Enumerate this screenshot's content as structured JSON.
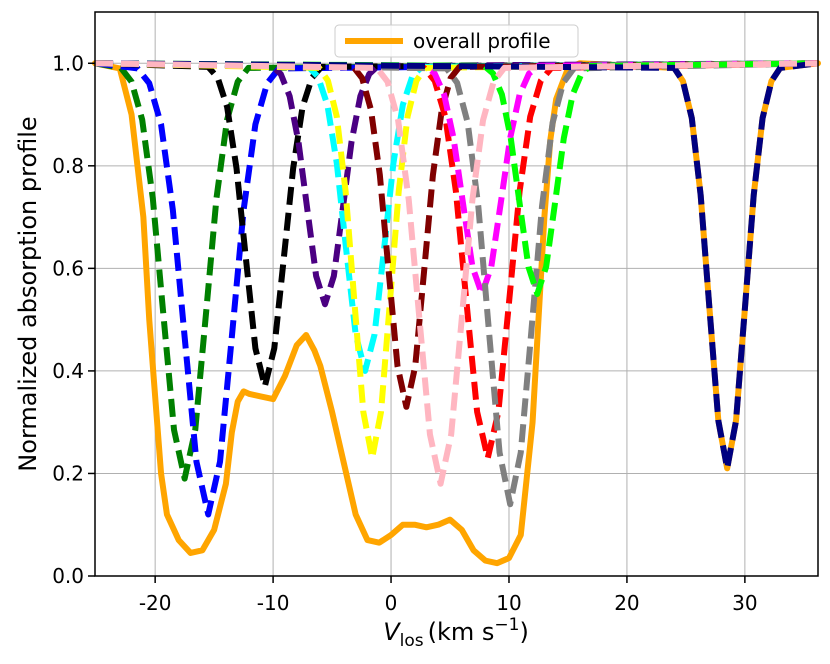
{
  "chart_data": {
    "type": "line",
    "xlabel": [
      "V",
      "los",
      "(km s",
      "−1",
      ")"
    ],
    "ylabel": "Normalized absorption profile",
    "xlim": [
      -25.1,
      36.2
    ],
    "ylim": [
      0,
      1.1
    ],
    "xticks": [
      -20,
      -10,
      0,
      10,
      20,
      30
    ],
    "yticks": [
      {
        "value": 0,
        "label": "0.0"
      },
      0.2,
      0.4,
      0.6,
      0.8,
      {
        "value": 1,
        "label": "1.0"
      }
    ],
    "grid": true,
    "legend": "upper center",
    "series": [
      {
        "name": "overall profile",
        "color": "#ffa500",
        "linestyle": "solid",
        "x": [
          -25.1,
          -23,
          -22,
          -21,
          -20.5,
          -20,
          -19.5,
          -19,
          -18,
          -17,
          -16,
          -15,
          -14,
          -13.5,
          -13,
          -12.5,
          -12,
          -11,
          -10,
          -9,
          -8,
          -7.2,
          -6.5,
          -6,
          -5,
          -4,
          -3,
          -2,
          -1,
          0,
          1,
          2,
          3,
          4,
          5,
          6,
          7,
          8,
          9,
          10,
          11,
          12,
          12.5,
          13,
          13.5,
          14,
          15,
          16,
          24,
          24.75,
          25.5,
          26.25,
          27,
          27.75,
          28.5,
          29.25,
          30,
          30.75,
          31.5,
          32.25,
          33,
          36.2
        ],
        "values": [
          1,
          0.99,
          0.9,
          0.7,
          0.5,
          0.35,
          0.2,
          0.12,
          0.07,
          0.045,
          0.05,
          0.09,
          0.18,
          0.28,
          0.34,
          0.36,
          0.355,
          0.35,
          0.345,
          0.39,
          0.45,
          0.47,
          0.44,
          0.41,
          0.32,
          0.22,
          0.12,
          0.07,
          0.065,
          0.08,
          0.1,
          0.1,
          0.095,
          0.1,
          0.11,
          0.09,
          0.05,
          0.03,
          0.025,
          0.035,
          0.08,
          0.3,
          0.5,
          0.7,
          0.85,
          0.93,
          0.99,
          1,
          0.991,
          0.965,
          0.893,
          0.743,
          0.521,
          0.303,
          0.21,
          0.303,
          0.521,
          0.743,
          0.893,
          0.965,
          0.991,
          1
        ]
      },
      {
        "color": "#008000",
        "linestyle": "dashed",
        "x": [
          -25.1,
          -22.9,
          -22.0,
          -21.1,
          -20.2,
          -19.3,
          -18.4,
          -17.5,
          -16.6,
          -15.7,
          -14.8,
          -13.9,
          -13.0,
          -12.1,
          36.2
        ],
        "values": [
          1,
          0.991,
          0.964,
          0.89,
          0.737,
          0.509,
          0.285,
          0.19,
          0.285,
          0.509,
          0.737,
          0.89,
          0.964,
          0.991,
          1
        ]
      },
      {
        "color": "#0000ff",
        "linestyle": "dashed",
        "x": [
          -25.1,
          -21.5,
          -20.5,
          -19.5,
          -18.5,
          -17.5,
          -16.5,
          -15.5,
          -14.5,
          -13.5,
          -12.5,
          -11.5,
          -10.5,
          -9.5,
          36.2
        ],
        "values": [
          1,
          0.99,
          0.961,
          0.881,
          0.714,
          0.466,
          0.223,
          0.12,
          0.223,
          0.466,
          0.714,
          0.881,
          0.961,
          0.99,
          1
        ]
      },
      {
        "color": "#000000",
        "linestyle": "dashed",
        "x": [
          -25.1,
          -15.5,
          -14.7,
          -13.9,
          -13.1,
          -12.3,
          -11.5,
          -10.7,
          -9.9,
          -9.1,
          -8.3,
          -7.5,
          -6.7,
          -5.9,
          36.2
        ],
        "values": [
          1,
          0.993,
          0.972,
          0.915,
          0.795,
          0.618,
          0.444,
          0.37,
          0.444,
          0.618,
          0.795,
          0.915,
          0.972,
          0.993,
          1
        ]
      },
      {
        "color": "#4b0082",
        "linestyle": "dashed",
        "x": [
          -25.1,
          -10.1,
          -9.35,
          -8.6,
          -7.85,
          -7.1,
          -6.35,
          -5.6,
          -4.85,
          -4.1,
          -3.35,
          -2.6,
          -1.85,
          -1.1,
          36.2
        ],
        "values": [
          1,
          0.995,
          0.979,
          0.936,
          0.847,
          0.715,
          0.585,
          0.53,
          0.585,
          0.715,
          0.847,
          0.936,
          0.979,
          0.995,
          1
        ]
      },
      {
        "color": "#00ffff",
        "linestyle": "dashed",
        "x": [
          -25.1,
          -7.0,
          -6.2,
          -5.4,
          -4.6,
          -3.8,
          -3.0,
          -2.2,
          -1.4,
          -0.6,
          0.2,
          1.0,
          1.8,
          2.6,
          36.2
        ],
        "values": [
          1,
          0.993,
          0.974,
          0.919,
          0.805,
          0.636,
          0.471,
          0.4,
          0.471,
          0.636,
          0.805,
          0.919,
          0.974,
          0.993,
          1
        ]
      },
      {
        "color": "#ffff00",
        "linestyle": "dashed",
        "x": [
          -25.1,
          -6.1,
          -5.35,
          -4.6,
          -3.85,
          -3.1,
          -2.35,
          -1.6,
          -0.85,
          -0.1,
          0.65,
          1.4,
          2.15,
          2.9,
          36.2
        ],
        "values": [
          1,
          0.991,
          0.966,
          0.896,
          0.75,
          0.533,
          0.32,
          0.23,
          0.32,
          0.533,
          0.75,
          0.896,
          0.966,
          0.991,
          1
        ]
      },
      {
        "color": "#800000",
        "linestyle": "dashed",
        "x": [
          -25.1,
          -3.2,
          -2.45,
          -1.7,
          -0.95,
          -0.2,
          0.55,
          1.3,
          2.05,
          2.8,
          3.55,
          4.3,
          5.05,
          5.8,
          36.2
        ],
        "values": [
          1,
          0.993,
          0.971,
          0.909,
          0.782,
          0.594,
          0.409,
          0.33,
          0.409,
          0.594,
          0.782,
          0.909,
          0.971,
          0.993,
          1
        ]
      },
      {
        "color": "#ff0000",
        "linestyle": "dashed",
        "x": [
          -25.1,
          2.8,
          3.7,
          4.6,
          5.5,
          6.4,
          7.3,
          8.2,
          9.1,
          10.0,
          10.9,
          11.8,
          12.7,
          13.6,
          36.2
        ],
        "values": [
          1,
          0.991,
          0.966,
          0.896,
          0.75,
          0.533,
          0.32,
          0.23,
          0.32,
          0.533,
          0.75,
          0.896,
          0.966,
          0.991,
          1
        ]
      },
      {
        "color": "#ff00ff",
        "linestyle": "dashed",
        "x": [
          -25.1,
          2.9,
          3.7,
          4.5,
          5.3,
          6.1,
          6.9,
          7.7,
          8.5,
          9.3,
          10.1,
          10.9,
          11.7,
          12.5,
          36.2
        ],
        "values": [
          1,
          0.995,
          0.98,
          0.939,
          0.854,
          0.727,
          0.603,
          0.55,
          0.603,
          0.727,
          0.854,
          0.939,
          0.98,
          0.995,
          1
        ]
      },
      {
        "color": "#808080",
        "linestyle": "dashed",
        "x": [
          -25.1,
          4.7,
          5.6,
          6.5,
          7.4,
          8.3,
          9.2,
          10.1,
          11.0,
          11.9,
          12.8,
          13.7,
          14.6,
          15.5,
          36.2
        ],
        "values": [
          1,
          0.99,
          0.962,
          0.884,
          0.721,
          0.478,
          0.241,
          0.14,
          0.241,
          0.478,
          0.721,
          0.884,
          0.962,
          0.99,
          1
        ]
      },
      {
        "color": "#00ff00",
        "linestyle": "dashed",
        "x": [
          -25.1,
          7.9,
          8.65,
          9.4,
          10.15,
          10.9,
          11.65,
          12.4,
          13.15,
          13.9,
          14.65,
          15.4,
          16.15,
          16.9,
          36.2
        ],
        "values": [
          1,
          0.995,
          0.98,
          0.939,
          0.854,
          0.727,
          0.603,
          0.55,
          0.603,
          0.727,
          0.854,
          0.939,
          0.98,
          0.995,
          1
        ]
      },
      {
        "color": "#000080",
        "linestyle": "dashed",
        "x": [
          -25.1,
          24,
          24.75,
          25.5,
          26.25,
          27,
          27.75,
          28.5,
          29.25,
          30,
          30.75,
          31.5,
          32.25,
          33,
          36.2
        ],
        "values": [
          1,
          0.991,
          0.965,
          0.893,
          0.743,
          0.521,
          0.303,
          0.21,
          0.303,
          0.521,
          0.743,
          0.893,
          0.965,
          0.991,
          1
        ]
      },
      {
        "color": "#ffb6c1",
        "linestyle": "dashed",
        "x": [
          -25.1,
          -1.2,
          -0.3,
          0.6,
          1.5,
          2.4,
          3.3,
          4.2,
          5.1,
          6.0,
          6.9,
          7.8,
          8.7,
          9.6,
          36.2
        ],
        "values": [
          1,
          0.991,
          0.964,
          0.889,
          0.734,
          0.503,
          0.276,
          0.18,
          0.276,
          0.503,
          0.734,
          0.889,
          0.964,
          0.991,
          1
        ]
      }
    ]
  }
}
